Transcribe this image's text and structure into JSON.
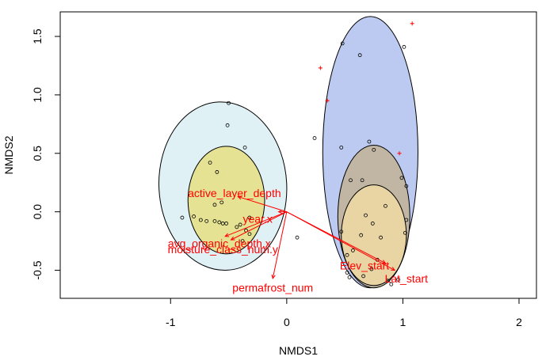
{
  "chart_data": {
    "type": "scatter",
    "title": "",
    "xlabel": "NMDS1",
    "ylabel": "NMDS2",
    "xlim": [
      -1.95,
      2.15
    ],
    "ylim": [
      -0.74,
      1.71
    ],
    "xticks": [
      -1,
      0,
      1,
      2
    ],
    "yticks": [
      -0.5,
      0.0,
      0.5,
      1.0,
      1.5
    ],
    "xtick_labels": [
      "-1",
      "0",
      "1",
      "2"
    ],
    "ytick_labels": [
      "-0.5",
      "0.0",
      "0.5",
      "1.0",
      "1.5"
    ],
    "ellipses": [
      {
        "name": "group-1",
        "fill": "#dbeef3",
        "cx": -0.55,
        "cy": 0.22,
        "rx": 0.55,
        "ry": 0.72,
        "angle": -3
      },
      {
        "name": "group-2",
        "fill": "#e6df83",
        "cx": -0.52,
        "cy": 0.1,
        "rx": 0.33,
        "ry": 0.46,
        "angle": 0
      },
      {
        "name": "group-3",
        "fill": "#b0c1ee",
        "cx": 0.72,
        "cy": 0.51,
        "rx": 0.41,
        "ry": 1.16,
        "angle": 0
      },
      {
        "name": "group-4",
        "fill": "#c2b396",
        "cx": 0.75,
        "cy": -0.04,
        "rx": 0.31,
        "ry": 0.61,
        "angle": 0
      },
      {
        "name": "group-4-lower",
        "fill": "#f0d9a4",
        "cx": 0.75,
        "cy": -0.2,
        "rx": 0.28,
        "ry": 0.43,
        "angle": 0
      }
    ],
    "site_points": [
      [
        -0.5,
        0.93
      ],
      [
        -0.51,
        0.74
      ],
      [
        -0.36,
        0.55
      ],
      [
        -0.66,
        0.42
      ],
      [
        -0.6,
        0.34
      ],
      [
        -0.62,
        0.06
      ],
      [
        -0.56,
        0.08
      ],
      [
        -0.8,
        -0.04
      ],
      [
        -0.9,
        -0.05
      ],
      [
        -0.74,
        -0.07
      ],
      [
        -0.69,
        -0.08
      ],
      [
        -0.62,
        -0.08
      ],
      [
        -0.58,
        -0.09
      ],
      [
        -0.55,
        -0.1
      ],
      [
        -0.52,
        -0.1
      ],
      [
        -0.4,
        -0.11
      ],
      [
        -0.43,
        -0.13
      ],
      [
        -0.35,
        -0.16
      ],
      [
        -0.32,
        -0.19
      ],
      [
        -0.38,
        -0.25
      ],
      [
        0.09,
        -0.22
      ],
      [
        -0.32,
        -0.05
      ],
      [
        0.24,
        0.63
      ],
      [
        0.48,
        1.44
      ],
      [
        0.63,
        1.34
      ],
      [
        1.01,
        1.41
      ],
      [
        0.71,
        0.6
      ],
      [
        0.75,
        0.53
      ],
      [
        0.55,
        0.27
      ],
      [
        0.65,
        0.27
      ],
      [
        0.99,
        0.29
      ],
      [
        1.03,
        0.22
      ],
      [
        0.85,
        0.05
      ],
      [
        0.68,
        -0.03
      ],
      [
        0.74,
        -0.1
      ],
      [
        1.03,
        -0.07
      ],
      [
        0.47,
        -0.17
      ],
      [
        0.64,
        -0.2
      ],
      [
        0.81,
        -0.22
      ],
      [
        1.02,
        -0.18
      ],
      [
        0.57,
        -0.33
      ],
      [
        0.52,
        -0.37
      ],
      [
        0.78,
        -0.41
      ],
      [
        0.73,
        -0.49
      ],
      [
        0.52,
        -0.52
      ],
      [
        0.66,
        -0.55
      ],
      [
        0.54,
        -0.56
      ],
      [
        0.87,
        -0.59
      ],
      [
        0.9,
        -0.62
      ],
      [
        0.96,
        -0.58
      ],
      [
        0.47,
        0.55
      ]
    ],
    "species_points": [
      [
        1.08,
        1.61
      ],
      [
        0.29,
        1.23
      ],
      [
        0.35,
        0.95
      ],
      [
        0.97,
        0.5
      ]
    ],
    "vectors": [
      {
        "name": "active-layer-depth-vector",
        "label": "active_layer_depth",
        "x": -0.42,
        "y": 0.13
      },
      {
        "name": "year-x-vector",
        "label": "year.x",
        "x": -0.07,
        "y": 0.0
      },
      {
        "name": "avg-organic-depth-vector",
        "label": "avg_organic_depth.x",
        "x": -0.53,
        "y": -0.21
      },
      {
        "name": "moisture-class-vector",
        "label": "moisture_class_num.y",
        "x": -0.48,
        "y": -0.24
      },
      {
        "name": "permafrost-num-vector",
        "label": "permafrost_num",
        "x": -0.12,
        "y": -0.57
      },
      {
        "name": "elev-start-vector",
        "label": "Elev_start",
        "x": 0.85,
        "y": -0.44
      },
      {
        "name": "lat-start-vector",
        "label": "Lat_start",
        "x": 0.93,
        "y": -0.5
      }
    ],
    "colors": {
      "vector": "#ff0000",
      "site_point": "#000000",
      "species_point": "#ff0000",
      "ellipse_stroke": "#000000"
    }
  }
}
